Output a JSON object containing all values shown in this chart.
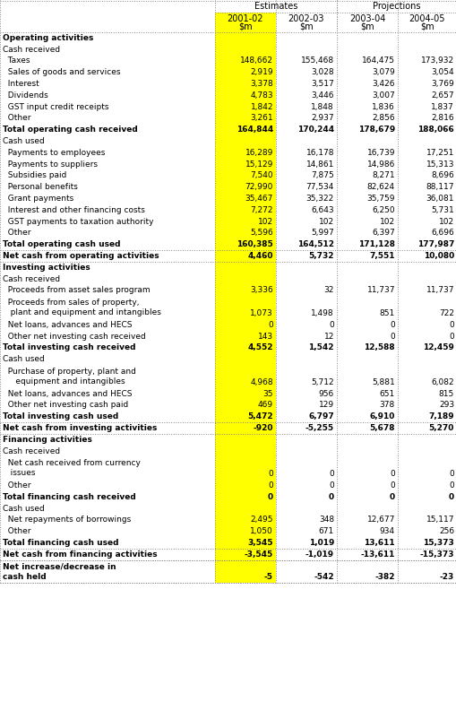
{
  "rows": [
    {
      "label": "Operating activities",
      "type": "section_header",
      "values": [
        null,
        null,
        null,
        null
      ]
    },
    {
      "label": "Cash received",
      "type": "subsection",
      "values": [
        null,
        null,
        null,
        null
      ]
    },
    {
      "label": "  Taxes",
      "type": "data",
      "values": [
        "148,662",
        "155,468",
        "164,475",
        "173,932"
      ]
    },
    {
      "label": "  Sales of goods and services",
      "type": "data",
      "values": [
        "2,919",
        "3,028",
        "3,079",
        "3,054"
      ]
    },
    {
      "label": "  Interest",
      "type": "data",
      "values": [
        "3,378",
        "3,517",
        "3,426",
        "3,769"
      ]
    },
    {
      "label": "  Dividends",
      "type": "data",
      "values": [
        "4,783",
        "3,446",
        "3,007",
        "2,657"
      ]
    },
    {
      "label": "  GST input credit receipts",
      "type": "data",
      "values": [
        "1,842",
        "1,848",
        "1,836",
        "1,837"
      ]
    },
    {
      "label": "  Other",
      "type": "data",
      "values": [
        "3,261",
        "2,937",
        "2,856",
        "2,816"
      ]
    },
    {
      "label": "Total operating cash received",
      "type": "total",
      "values": [
        "164,844",
        "170,244",
        "178,679",
        "188,066"
      ]
    },
    {
      "label": "Cash used",
      "type": "subsection",
      "values": [
        null,
        null,
        null,
        null
      ]
    },
    {
      "label": "  Payments to employees",
      "type": "data",
      "values": [
        "16,289",
        "16,178",
        "16,739",
        "17,251"
      ]
    },
    {
      "label": "  Payments to suppliers",
      "type": "data",
      "values": [
        "15,129",
        "14,861",
        "14,986",
        "15,313"
      ]
    },
    {
      "label": "  Subsidies paid",
      "type": "data",
      "values": [
        "7,540",
        "7,875",
        "8,271",
        "8,696"
      ]
    },
    {
      "label": "  Personal benefits",
      "type": "data",
      "values": [
        "72,990",
        "77,534",
        "82,624",
        "88,117"
      ]
    },
    {
      "label": "  Grant payments",
      "type": "data",
      "values": [
        "35,467",
        "35,322",
        "35,759",
        "36,081"
      ]
    },
    {
      "label": "  Interest and other financing costs",
      "type": "data",
      "values": [
        "7,272",
        "6,643",
        "6,250",
        "5,731"
      ]
    },
    {
      "label": "  GST payments to taxation authority",
      "type": "data",
      "values": [
        "102",
        "102",
        "102",
        "102"
      ]
    },
    {
      "label": "  Other",
      "type": "data",
      "values": [
        "5,596",
        "5,997",
        "6,397",
        "6,696"
      ]
    },
    {
      "label": "Total operating cash used",
      "type": "total",
      "values": [
        "160,385",
        "164,512",
        "171,128",
        "177,987"
      ]
    },
    {
      "label": "Net cash from operating activities",
      "type": "net_total",
      "values": [
        "4,460",
        "5,732",
        "7,551",
        "10,080"
      ]
    },
    {
      "label": "Investing activities",
      "type": "section_header",
      "values": [
        null,
        null,
        null,
        null
      ]
    },
    {
      "label": "Cash received",
      "type": "subsection",
      "values": [
        null,
        null,
        null,
        null
      ]
    },
    {
      "label": "  Proceeds from asset sales program",
      "type": "data",
      "values": [
        "3,336",
        "32",
        "11,737",
        "11,737"
      ]
    },
    {
      "label": "  Proceeds from sales of property,\n   plant and equipment and intangibles",
      "type": "data_2line",
      "values": [
        "1,073",
        "1,498",
        "851",
        "722"
      ]
    },
    {
      "label": "  Net loans, advances and HECS",
      "type": "data",
      "values": [
        "0",
        "0",
        "0",
        "0"
      ]
    },
    {
      "label": "  Other net investing cash received",
      "type": "data",
      "values": [
        "143",
        "12",
        "0",
        "0"
      ]
    },
    {
      "label": "Total investing cash received",
      "type": "total",
      "values": [
        "4,552",
        "1,542",
        "12,588",
        "12,459"
      ]
    },
    {
      "label": "Cash used",
      "type": "subsection",
      "values": [
        null,
        null,
        null,
        null
      ]
    },
    {
      "label": "  Purchase of property, plant and\n     equipment and intangibles",
      "type": "data_2line",
      "values": [
        "4,968",
        "5,712",
        "5,881",
        "6,082"
      ]
    },
    {
      "label": "  Net loans, advances and HECS",
      "type": "data",
      "values": [
        "35",
        "956",
        "651",
        "815"
      ]
    },
    {
      "label": "  Other net investing cash paid",
      "type": "data",
      "values": [
        "469",
        "129",
        "378",
        "293"
      ]
    },
    {
      "label": "Total investing cash used",
      "type": "total",
      "values": [
        "5,472",
        "6,797",
        "6,910",
        "7,189"
      ]
    },
    {
      "label": "Net cash from investing activities",
      "type": "net_total",
      "values": [
        "-920",
        "-5,255",
        "5,678",
        "5,270"
      ]
    },
    {
      "label": "Financing activities",
      "type": "section_header",
      "values": [
        null,
        null,
        null,
        null
      ]
    },
    {
      "label": "Cash received",
      "type": "subsection",
      "values": [
        null,
        null,
        null,
        null
      ]
    },
    {
      "label": "  Net cash received from currency\n   issues",
      "type": "data_2line",
      "values": [
        "0",
        "0",
        "0",
        "0"
      ]
    },
    {
      "label": "  Other",
      "type": "data",
      "values": [
        "0",
        "0",
        "0",
        "0"
      ]
    },
    {
      "label": "Total financing cash received",
      "type": "total",
      "values": [
        "0",
        "0",
        "0",
        "0"
      ]
    },
    {
      "label": "Cash used",
      "type": "subsection",
      "values": [
        null,
        null,
        null,
        null
      ]
    },
    {
      "label": "  Net repayments of borrowings",
      "type": "data",
      "values": [
        "2,495",
        "348",
        "12,677",
        "15,117"
      ]
    },
    {
      "label": "  Other",
      "type": "data",
      "values": [
        "1,050",
        "671",
        "934",
        "256"
      ]
    },
    {
      "label": "Total financing cash used",
      "type": "total",
      "values": [
        "3,545",
        "1,019",
        "13,611",
        "15,373"
      ]
    },
    {
      "label": "Net cash from financing activities",
      "type": "net_total",
      "values": [
        "-3,545",
        "-1,019",
        "-13,611",
        "-15,373"
      ]
    },
    {
      "label": "Net increase/decrease in\ncash held",
      "type": "net_total_2line",
      "values": [
        "-5",
        "-542",
        "-382",
        "-23"
      ]
    }
  ],
  "col_bg_yellow": "#FFFF00",
  "col_bg_white": "#FFFFFF"
}
